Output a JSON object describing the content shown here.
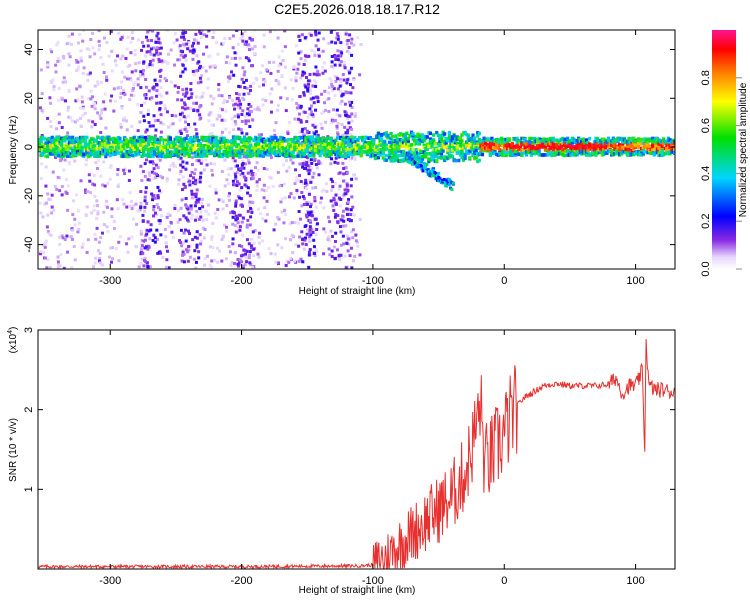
{
  "title": "C2E5.2026.018.18.17.R12",
  "colors": {
    "snr_line": "#e8302e",
    "background": "#ffffff",
    "frame": "#000000"
  },
  "chart_data": [
    {
      "type": "heatmap",
      "title": "C2E5.2026.018.18.17.R12",
      "xlabel": "Height of straight line (km)",
      "ylabel": "Frequency (Hz)",
      "xlim": [
        -355,
        130
      ],
      "ylim": [
        -50,
        48
      ],
      "xticks": [
        -300,
        -200,
        -100,
        0,
        100
      ],
      "yticks": [
        -40,
        -20,
        0,
        20,
        40
      ],
      "colorbar": {
        "label": "Normalized spectral amplitude",
        "range": [
          0,
          1
        ],
        "ticks": [
          "0.0",
          "0.2",
          "0.4",
          "0.6",
          "0.8"
        ],
        "tick_values": [
          0,
          0.2,
          0.4,
          0.6,
          0.8
        ]
      },
      "description_of_content": "Strong band near 0 Hz across all heights; scattered purple noise at heights below -110 km; branch descending to about -15 Hz near -55 km"
    },
    {
      "type": "line",
      "xlabel": "Height of straight line (km)",
      "ylabel": "SNR (10 * v/v)",
      "multiplier": "(x10",
      "multiplier_exp": "4",
      "multiplier_close": ")",
      "xlim": [
        -355,
        130
      ],
      "ylim": [
        0,
        3
      ],
      "xticks": [
        -300,
        -200,
        -100,
        0,
        100
      ],
      "yticks": [
        1,
        2,
        3
      ],
      "series": [
        {
          "name": "SNR",
          "x": [
            -355,
            -300,
            -200,
            -110,
            -100,
            -90,
            -80,
            -70,
            -60,
            -50,
            -40,
            -30,
            -25,
            -20,
            -18,
            -15,
            -10,
            -5,
            0,
            5,
            10,
            15,
            20,
            25,
            30,
            40,
            50,
            60,
            70,
            80,
            85,
            90,
            95,
            100,
            103,
            105,
            107,
            108,
            110,
            115,
            120,
            130
          ],
          "y": [
            0.03,
            0.03,
            0.03,
            0.04,
            0.05,
            0.15,
            0.3,
            0.45,
            0.6,
            0.75,
            0.9,
            1.2,
            1.5,
            1.9,
            2.1,
            1.3,
            1.4,
            1.55,
            1.7,
            1.9,
            2.05,
            2.15,
            2.2,
            2.25,
            2.3,
            2.33,
            2.3,
            2.3,
            2.3,
            2.32,
            2.4,
            2.2,
            2.3,
            2.3,
            2.4,
            2.5,
            1.5,
            2.9,
            2.3,
            2.25,
            2.25,
            2.22
          ]
        }
      ]
    }
  ]
}
